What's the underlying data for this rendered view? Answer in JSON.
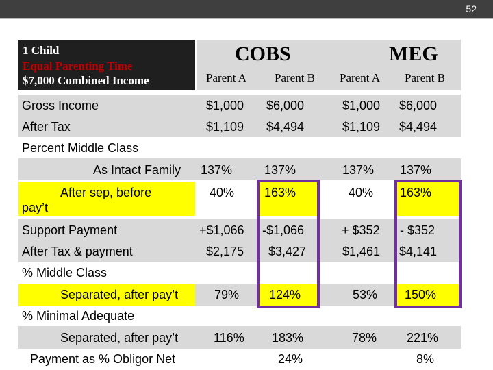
{
  "slide_number": "52",
  "header": {
    "line1": "1 Child",
    "line2": "Equal Parenting Time",
    "line3": "$7,000 Combined Income",
    "cobs": "COBS",
    "meg": "MEG",
    "parent_a": "Parent A",
    "parent_b": "Parent B"
  },
  "rows": {
    "gross_income": {
      "label": "Gross Income",
      "cobs_a": "$1,000",
      "cobs_b": "$6,000",
      "meg_a": "$1,000",
      "meg_b": "$6,000"
    },
    "after_tax": {
      "label": "After Tax",
      "cobs_a": "$1,109",
      "cobs_b": "$4,494",
      "meg_a": "$1,109",
      "meg_b": "$4,494"
    },
    "percent_middle_class": {
      "label": "Percent Middle Class"
    },
    "as_intact_family": {
      "label": "As Intact Family",
      "cobs_a": "137%",
      "cobs_b": "137%",
      "meg_a": "137%",
      "meg_b": "137%"
    },
    "after_sep_before_pay": {
      "label_line1": "After sep, before",
      "label_line2": "pay’t",
      "cobs_a": "40%",
      "cobs_b": "163%",
      "meg_a": "40%",
      "meg_b": "163%"
    },
    "support_payment": {
      "label": "Support Payment",
      "cobs_a": "+$1,066",
      "cobs_b": "-$1,066",
      "meg_a": "+ $352",
      "meg_b": "- $352"
    },
    "after_tax_payment": {
      "label": "After Tax & payment",
      "cobs_a": "$2,175",
      "cobs_b": "$3,427",
      "meg_a": "$1,461",
      "meg_b": "$4,141"
    },
    "pct_middle_class": {
      "label": "% Middle Class"
    },
    "separated_after_pay_mc": {
      "label": "Separated, after pay’t",
      "cobs_a": "79%",
      "cobs_b": "124%",
      "meg_a": "53%",
      "meg_b": "150%"
    },
    "pct_minimal_adequate": {
      "label": "% Minimal Adequate"
    },
    "separated_after_pay_ma": {
      "label": "Separated, after pay’t",
      "cobs_a": "116%",
      "cobs_b": "183%",
      "meg_a": "78%",
      "meg_b": "221%"
    },
    "payment_pct_obligor": {
      "label": "Payment as % Obligor Net",
      "cobs_b": "24%",
      "meg_b": "8%"
    }
  },
  "colors": {
    "highlight": "#ffff00",
    "band": "#d9d9d9",
    "box": "#7030a0",
    "header_dark": "#1f1f1f",
    "header_red": "#c00000"
  }
}
